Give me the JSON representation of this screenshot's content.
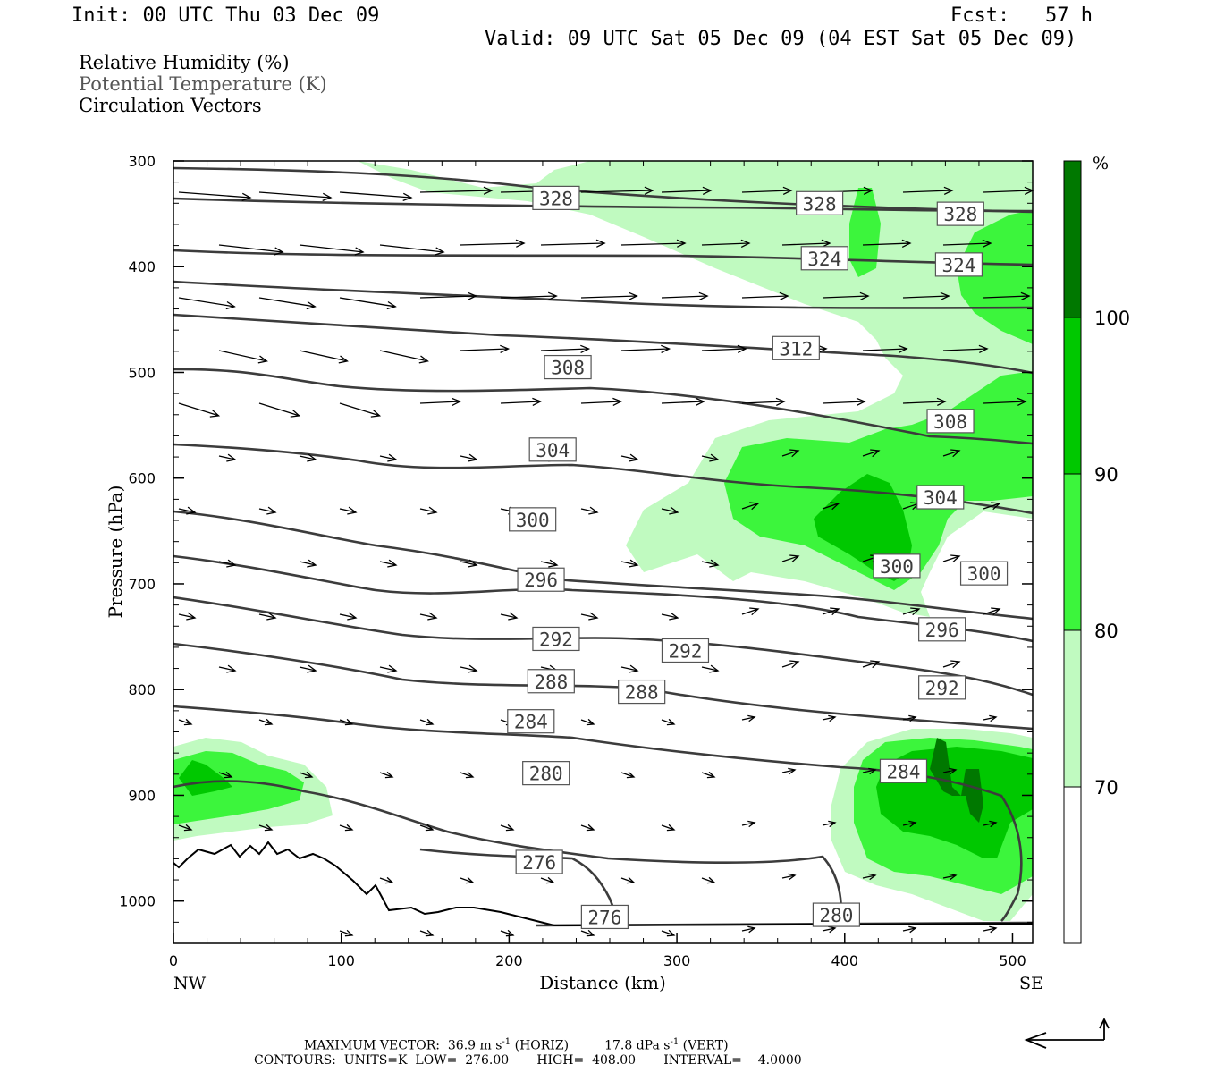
{
  "header": {
    "init": "Init: 00 UTC Thu 03 Dec 09",
    "fcst": "Fcst:   57 h",
    "valid": "Valid: 09 UTC Sat 05 Dec 09 (04 EST Sat 05 Dec 09)"
  },
  "legend": {
    "rh": "Relative Humidity (%)",
    "theta": "Potential Temperature (K)",
    "vectors": "Circulation Vectors"
  },
  "colors": {
    "rh70": "#c0fac0",
    "rh80": "#3cf53c",
    "rh90": "#00c800",
    "rh100": "#007800",
    "contour": "#3c3c3c",
    "terrain": "#000000",
    "vector": "#000000"
  },
  "chart_data": {
    "type": "contour",
    "xlabel": "Distance (km)",
    "ylabel": "Pressure (hPa)",
    "xlim": [
      0,
      512
    ],
    "ylim": [
      1040,
      300
    ],
    "x_ticks": [
      0,
      100,
      200,
      300,
      400,
      500
    ],
    "y_ticks": [
      300,
      400,
      500,
      600,
      700,
      800,
      900,
      1000
    ],
    "x_end_labels": {
      "left": "NW",
      "right": "SE"
    },
    "colorbar": {
      "unit": "%",
      "levels": [
        70,
        80,
        90,
        100
      ]
    },
    "contour_labels": [
      {
        "x": 228,
        "p": 335,
        "text": "328"
      },
      {
        "x": 385,
        "p": 340,
        "text": "328"
      },
      {
        "x": 469,
        "p": 350,
        "text": "328"
      },
      {
        "x": 388,
        "p": 392,
        "text": "324"
      },
      {
        "x": 468,
        "p": 398,
        "text": "324"
      },
      {
        "x": 371,
        "p": 477,
        "text": "312"
      },
      {
        "x": 235,
        "p": 495,
        "text": "308"
      },
      {
        "x": 463,
        "p": 546,
        "text": "308"
      },
      {
        "x": 226,
        "p": 573,
        "text": "304"
      },
      {
        "x": 457,
        "p": 618,
        "text": "304"
      },
      {
        "x": 214,
        "p": 639,
        "text": "300"
      },
      {
        "x": 431,
        "p": 683,
        "text": "300"
      },
      {
        "x": 483,
        "p": 690,
        "text": "300"
      },
      {
        "x": 219,
        "p": 696,
        "text": "296"
      },
      {
        "x": 458,
        "p": 743,
        "text": "296"
      },
      {
        "x": 228,
        "p": 752,
        "text": "292"
      },
      {
        "x": 305,
        "p": 763,
        "text": "292"
      },
      {
        "x": 458,
        "p": 798,
        "text": "292"
      },
      {
        "x": 225,
        "p": 792,
        "text": "288"
      },
      {
        "x": 279,
        "p": 802,
        "text": "288"
      },
      {
        "x": 213,
        "p": 830,
        "text": "284"
      },
      {
        "x": 435,
        "p": 877,
        "text": "284"
      },
      {
        "x": 222,
        "p": 879,
        "text": "280"
      },
      {
        "x": 395,
        "p": 1013,
        "text": "280"
      },
      {
        "x": 218,
        "p": 963,
        "text": "276"
      },
      {
        "x": 257,
        "p": 1015,
        "text": "276"
      }
    ]
  },
  "footer": {
    "max_vector_prefix": "MAXIMUM VECTOR:  36.9 m s",
    "max_vector_mid": " (HORIZ)         17.8 dPa s",
    "max_vector_suffix": " (VERT)",
    "exponent": "-1",
    "contours": "CONTOURS:  UNITS=K  LOW=  276.00       HIGH=  408.00       INTERVAL=    4.0000"
  }
}
